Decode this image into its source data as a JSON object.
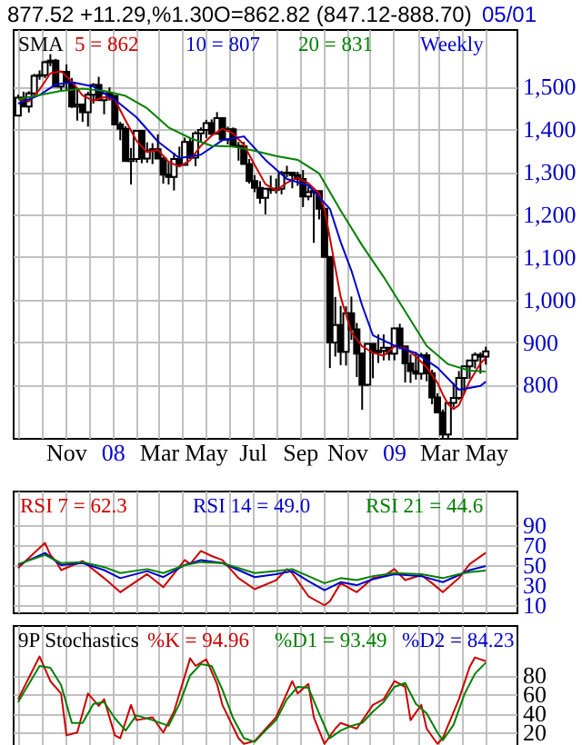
{
  "chart_data": [
    {
      "type": "candlestick",
      "title": "877.52 +11.29,%1.30O=862.82 (847.12-888.70)",
      "annotations": [
        "05/01",
        "SMA",
        "Weekly"
      ],
      "color": "#000000",
      "grid": true,
      "xlim": [
        "2007-08-24",
        "2009-06-10"
      ],
      "xticks": [
        {
          "value": "2007-09-01",
          "label": null
        },
        {
          "value": "2007-10-01",
          "label": null
        },
        {
          "value": "2007-11-01",
          "label": "Nov"
        },
        {
          "value": "2007-12-01",
          "label": null
        },
        {
          "value": "2008-01-01",
          "label": "08"
        },
        {
          "value": "2008-02-01",
          "label": null
        },
        {
          "value": "2008-03-01",
          "label": "Mar"
        },
        {
          "value": "2008-04-01",
          "label": null
        },
        {
          "value": "2008-05-01",
          "label": "May"
        },
        {
          "value": "2008-06-01",
          "label": null
        },
        {
          "value": "2008-07-01",
          "label": "Jul"
        },
        {
          "value": "2008-08-01",
          "label": null
        },
        {
          "value": "2008-09-01",
          "label": "Sep"
        },
        {
          "value": "2008-10-01",
          "label": null
        },
        {
          "value": "2008-11-01",
          "label": "Nov"
        },
        {
          "value": "2008-12-01",
          "label": null
        },
        {
          "value": "2009-01-01",
          "label": "09"
        },
        {
          "value": "2009-02-01",
          "label": null
        },
        {
          "value": "2009-03-01",
          "label": "Mar"
        },
        {
          "value": "2009-04-01",
          "label": null
        },
        {
          "value": "2009-05-01",
          "label": "May"
        }
      ],
      "ylim": [
        675,
        1635
      ],
      "yticks": [
        800,
        900,
        {
          "value": 1000,
          "label": "1,000"
        },
        {
          "value": 1100,
          "label": "1,100"
        },
        {
          "value": 1200,
          "label": "1,200"
        },
        {
          "value": 1300,
          "label": "1,300"
        },
        {
          "value": 1400,
          "label": "1,400"
        },
        {
          "value": 1500,
          "label": "1,500"
        }
      ],
      "x": [
        "2007-08-31",
        "2007-09-07",
        "2007-09-14",
        "2007-09-21",
        "2007-09-28",
        "2007-10-05",
        "2007-10-12",
        "2007-10-19",
        "2007-10-26",
        "2007-11-02",
        "2007-11-09",
        "2007-11-16",
        "2007-11-23",
        "2007-11-30",
        "2007-12-07",
        "2007-12-14",
        "2007-12-21",
        "2007-12-28",
        "2008-01-04",
        "2008-01-11",
        "2008-01-18",
        "2008-01-25",
        "2008-02-01",
        "2008-02-08",
        "2008-02-15",
        "2008-02-22",
        "2008-02-29",
        "2008-03-07",
        "2008-03-14",
        "2008-03-21",
        "2008-03-28",
        "2008-04-04",
        "2008-04-11",
        "2008-04-18",
        "2008-04-25",
        "2008-05-02",
        "2008-05-09",
        "2008-05-16",
        "2008-05-23",
        "2008-05-30",
        "2008-06-06",
        "2008-06-13",
        "2008-06-20",
        "2008-06-27",
        "2008-07-04",
        "2008-07-11",
        "2008-07-18",
        "2008-07-25",
        "2008-08-01",
        "2008-08-08",
        "2008-08-15",
        "2008-08-22",
        "2008-08-29",
        "2008-09-05",
        "2008-09-12",
        "2008-09-19",
        "2008-09-26",
        "2008-10-03",
        "2008-10-10",
        "2008-10-17",
        "2008-10-24",
        "2008-10-31",
        "2008-11-07",
        "2008-11-14",
        "2008-11-21",
        "2008-11-28",
        "2008-12-05",
        "2008-12-12",
        "2008-12-19",
        "2008-12-26",
        "2009-01-02",
        "2009-01-09",
        "2009-01-16",
        "2009-01-23",
        "2009-01-30",
        "2009-02-06",
        "2009-02-13",
        "2009-02-20",
        "2009-02-27",
        "2009-03-06",
        "2009-03-13",
        "2009-03-20",
        "2009-03-27",
        "2009-04-03",
        "2009-04-10",
        "2009-04-17",
        "2009-04-24",
        "2009-05-01"
      ],
      "ohlc": [
        [
          1432,
          1481,
          1432,
          1474
        ],
        [
          1474,
          1488,
          1452,
          1453
        ],
        [
          1453,
          1489,
          1439,
          1484
        ],
        [
          1484,
          1530,
          1476,
          1525
        ],
        [
          1525,
          1538,
          1516,
          1527
        ],
        [
          1527,
          1561,
          1520,
          1557
        ],
        [
          1557,
          1576,
          1548,
          1561
        ],
        [
          1561,
          1565,
          1500,
          1500
        ],
        [
          1500,
          1535,
          1490,
          1535
        ],
        [
          1535,
          1552,
          1492,
          1509
        ],
        [
          1509,
          1520,
          1450,
          1453
        ],
        [
          1453,
          1492,
          1420,
          1458
        ],
        [
          1458,
          1460,
          1417,
          1440
        ],
        [
          1440,
          1488,
          1406,
          1481
        ],
        [
          1481,
          1508,
          1460,
          1504
        ],
        [
          1504,
          1523,
          1467,
          1468
        ],
        [
          1468,
          1485,
          1435,
          1484
        ],
        [
          1484,
          1498,
          1467,
          1478
        ],
        [
          1478,
          1478,
          1411,
          1411
        ],
        [
          1411,
          1417,
          1374,
          1401
        ],
        [
          1401,
          1407,
          1325,
          1325
        ],
        [
          1325,
          1356,
          1270,
          1330
        ],
        [
          1330,
          1396,
          1322,
          1396
        ],
        [
          1396,
          1396,
          1320,
          1331
        ],
        [
          1331,
          1369,
          1321,
          1349
        ],
        [
          1349,
          1367,
          1318,
          1353
        ],
        [
          1353,
          1388,
          1331,
          1331
        ],
        [
          1331,
          1335,
          1272,
          1293
        ],
        [
          1293,
          1321,
          1270,
          1288
        ],
        [
          1288,
          1345,
          1256,
          1330
        ],
        [
          1330,
          1359,
          1312,
          1316
        ],
        [
          1316,
          1380,
          1316,
          1370
        ],
        [
          1370,
          1380,
          1330,
          1333
        ],
        [
          1333,
          1395,
          1313,
          1390
        ],
        [
          1390,
          1404,
          1370,
          1398
        ],
        [
          1398,
          1422,
          1379,
          1414
        ],
        [
          1414,
          1423,
          1383,
          1389
        ],
        [
          1389,
          1440,
          1388,
          1426
        ],
        [
          1426,
          1426,
          1373,
          1376
        ],
        [
          1376,
          1406,
          1364,
          1400
        ],
        [
          1400,
          1404,
          1359,
          1361
        ],
        [
          1361,
          1370,
          1326,
          1360
        ],
        [
          1360,
          1370,
          1318,
          1318
        ],
        [
          1318,
          1330,
          1272,
          1278
        ],
        [
          1278,
          1292,
          1252,
          1262
        ],
        [
          1262,
          1278,
          1225,
          1239
        ],
        [
          1239,
          1262,
          1200,
          1260
        ],
        [
          1260,
          1291,
          1248,
          1257
        ],
        [
          1257,
          1284,
          1249,
          1260
        ],
        [
          1260,
          1302,
          1247,
          1297
        ],
        [
          1297,
          1314,
          1287,
          1298
        ],
        [
          1298,
          1300,
          1261,
          1292
        ],
        [
          1292,
          1300,
          1267,
          1283
        ],
        [
          1283,
          1304,
          1217,
          1242
        ],
        [
          1242,
          1265,
          1233,
          1252
        ],
        [
          1252,
          1256,
          1133,
          1255
        ],
        [
          1255,
          1255,
          1188,
          1213
        ],
        [
          1213,
          1213,
          1099,
          1100
        ],
        [
          1100,
          1100,
          839,
          899
        ],
        [
          899,
          1006,
          866,
          940
        ],
        [
          940,
          985,
          846,
          877
        ],
        [
          877,
          984,
          845,
          968
        ],
        [
          968,
          1007,
          905,
          930
        ],
        [
          930,
          945,
          818,
          873
        ],
        [
          873,
          876,
          741,
          800
        ],
        [
          800,
          896,
          797,
          896
        ],
        [
          896,
          897,
          815,
          876
        ],
        [
          876,
          918,
          851,
          880
        ],
        [
          880,
          918,
          857,
          887
        ],
        [
          887,
          887,
          857,
          873
        ],
        [
          873,
          934,
          857,
          932
        ],
        [
          932,
          943,
          883,
          890
        ],
        [
          890,
          890,
          805,
          850
        ],
        [
          850,
          871,
          804,
          832
        ],
        [
          832,
          877,
          812,
          826
        ],
        [
          826,
          875,
          812,
          869
        ],
        [
          869,
          876,
          808,
          827
        ],
        [
          827,
          835,
          754,
          770
        ],
        [
          770,
          780,
          734,
          735
        ],
        [
          735,
          742,
          675,
          683
        ],
        [
          683,
          758,
          672,
          757
        ],
        [
          757,
          804,
          747,
          769
        ],
        [
          769,
          832,
          764,
          816
        ],
        [
          816,
          845,
          779,
          843
        ],
        [
          843,
          858,
          814,
          857
        ],
        [
          857,
          876,
          838,
          870
        ],
        [
          870,
          876,
          826,
          866
        ],
        [
          866,
          889,
          847,
          878
        ]
      ],
      "series": [
        {
          "type": "line",
          "name": "5 = 862",
          "color": "#cc0000",
          "x": [
            "2007-08-31",
            "2007-09-14",
            "2007-09-28",
            "2007-10-12",
            "2007-10-26",
            "2007-11-09",
            "2007-11-23",
            "2007-12-07",
            "2007-12-21",
            "2008-01-04",
            "2008-01-18",
            "2008-02-01",
            "2008-02-15",
            "2008-02-29",
            "2008-03-14",
            "2008-03-28",
            "2008-04-11",
            "2008-04-25",
            "2008-05-09",
            "2008-05-23",
            "2008-06-06",
            "2008-06-20",
            "2008-07-04",
            "2008-07-18",
            "2008-08-01",
            "2008-08-15",
            "2008-08-29",
            "2008-09-12",
            "2008-09-26",
            "2008-10-03",
            "2008-10-10",
            "2008-10-24",
            "2008-11-07",
            "2008-11-21",
            "2008-12-05",
            "2008-12-19",
            "2009-01-02",
            "2009-01-16",
            "2009-01-30",
            "2009-02-13",
            "2009-02-27",
            "2009-03-06",
            "2009-03-13",
            "2009-03-20",
            "2009-03-27",
            "2009-04-10",
            "2009-04-24",
            "2009-05-01"
          ],
          "values": [
            1470,
            1465,
            1493,
            1531,
            1536,
            1512,
            1479,
            1467,
            1475,
            1469,
            1420,
            1373,
            1346,
            1352,
            1323,
            1312,
            1327,
            1361,
            1385,
            1401,
            1390,
            1363,
            1316,
            1271,
            1256,
            1274,
            1286,
            1273,
            1249,
            1212,
            1144,
            1006,
            923,
            890,
            875,
            868,
            890,
            886,
            866,
            841,
            805,
            777,
            754,
            743,
            752,
            808,
            850,
            862
          ]
        },
        {
          "type": "line",
          "name": "10 = 807",
          "color": "#0000cc",
          "x": [
            "2007-08-31",
            "2007-09-28",
            "2007-10-19",
            "2007-11-09",
            "2007-12-07",
            "2008-01-04",
            "2008-02-01",
            "2008-02-29",
            "2008-03-28",
            "2008-04-25",
            "2008-05-23",
            "2008-06-20",
            "2008-07-18",
            "2008-08-15",
            "2008-09-12",
            "2008-10-10",
            "2008-10-24",
            "2008-11-07",
            "2008-11-21",
            "2008-12-05",
            "2009-01-02",
            "2009-01-30",
            "2009-02-27",
            "2009-03-27",
            "2009-04-24",
            "2009-05-01"
          ],
          "values": [
            1460,
            1480,
            1505,
            1510,
            1500,
            1469,
            1428,
            1371,
            1332,
            1340,
            1374,
            1383,
            1328,
            1283,
            1268,
            1213,
            1135,
            1068,
            986,
            916,
            892,
            874,
            840,
            788,
            797,
            807
          ]
        },
        {
          "type": "line",
          "name": "20 = 831",
          "color": "#008000",
          "x": [
            "2007-08-31",
            "2007-10-26",
            "2007-11-23",
            "2007-12-21",
            "2008-01-18",
            "2008-02-15",
            "2008-03-14",
            "2008-04-11",
            "2008-05-09",
            "2008-06-06",
            "2008-07-04",
            "2008-08-01",
            "2008-08-29",
            "2008-09-26",
            "2008-10-24",
            "2008-11-21",
            "2008-12-19",
            "2009-01-16",
            "2009-02-13",
            "2009-03-13",
            "2009-04-10",
            "2009-05-01"
          ],
          "values": [
            1470,
            1490,
            1495,
            1490,
            1478,
            1449,
            1404,
            1379,
            1361,
            1359,
            1349,
            1337,
            1328,
            1296,
            1209,
            1127,
            1053,
            972,
            891,
            848,
            833,
            831
          ]
        }
      ]
    },
    {
      "type": "line",
      "grid": true,
      "tick_labels": "y",
      "xlim": [
        "2007-08-24",
        "2009-06-10"
      ],
      "xticks": [
        {
          "value": "2007-09-01",
          "label": null
        },
        {
          "value": "2007-10-01",
          "label": null
        },
        {
          "value": "2007-11-01",
          "label": null
        },
        {
          "value": "2007-12-01",
          "label": null
        },
        {
          "value": "2008-01-01",
          "label": null
        },
        {
          "value": "2008-02-01",
          "label": null
        },
        {
          "value": "2008-03-01",
          "label": null
        },
        {
          "value": "2008-04-01",
          "label": null
        },
        {
          "value": "2008-05-01",
          "label": null
        },
        {
          "value": "2008-06-01",
          "label": null
        },
        {
          "value": "2008-07-01",
          "label": null
        },
        {
          "value": "2008-08-01",
          "label": null
        },
        {
          "value": "2008-09-01",
          "label": null
        },
        {
          "value": "2008-10-01",
          "label": null
        },
        {
          "value": "2008-11-01",
          "label": null
        },
        {
          "value": "2008-12-01",
          "label": null
        },
        {
          "value": "2009-01-01",
          "label": null
        },
        {
          "value": "2009-02-01",
          "label": null
        },
        {
          "value": "2009-03-01",
          "label": null
        },
        {
          "value": "2009-04-01",
          "label": null
        },
        {
          "value": "2009-05-01",
          "label": null
        }
      ],
      "ylim": [
        3,
        124
      ],
      "yticks": [
        10,
        30,
        50,
        70,
        90
      ],
      "series": [
        {
          "name": "RSI 7 = 62.3",
          "color": "#cc0000",
          "x": [
            "2007-08-31",
            "2007-10-05",
            "2007-10-12",
            "2007-10-19",
            "2007-10-26",
            "2007-11-23",
            "2007-12-21",
            "2008-01-11",
            "2008-02-15",
            "2008-03-07",
            "2008-04-04",
            "2008-04-11",
            "2008-04-25",
            "2008-05-09",
            "2008-05-23",
            "2008-06-13",
            "2008-07-04",
            "2008-08-01",
            "2008-08-15",
            "2008-08-22",
            "2008-09-12",
            "2008-10-03",
            "2008-10-10",
            "2008-10-24",
            "2008-11-14",
            "2008-12-05",
            "2008-12-19",
            "2009-01-02",
            "2009-01-16",
            "2009-02-06",
            "2009-02-20",
            "2009-03-06",
            "2009-03-27",
            "2009-04-10",
            "2009-05-01"
          ],
          "values": [
            47,
            72,
            60,
            54,
            45,
            54,
            37,
            23,
            41,
            28,
            55,
            51,
            64,
            59,
            55,
            37,
            26,
            35,
            46,
            42,
            19,
            10,
            14,
            32,
            23,
            37,
            39,
            46,
            35,
            40,
            32,
            23,
            37,
            51,
            62.3
          ]
        },
        {
          "name": "RSI 14 = 49.0",
          "color": "#0000cc",
          "x": [
            "2007-08-31",
            "2007-10-05",
            "2007-10-26",
            "2007-11-23",
            "2007-12-21",
            "2008-01-11",
            "2008-02-15",
            "2008-03-07",
            "2008-04-04",
            "2008-04-25",
            "2008-05-23",
            "2008-06-13",
            "2008-07-04",
            "2008-08-01",
            "2008-08-22",
            "2008-09-12",
            "2008-10-03",
            "2008-10-24",
            "2008-11-14",
            "2008-12-05",
            "2009-01-02",
            "2009-02-06",
            "2009-03-06",
            "2009-03-27",
            "2009-04-10",
            "2009-05-01"
          ],
          "values": [
            50,
            62,
            50,
            52,
            45,
            37,
            44,
            38,
            50,
            55,
            52,
            45,
            38,
            41,
            44,
            34,
            25,
            33,
            30,
            36,
            41,
            39,
            33,
            40,
            45,
            49.0
          ]
        },
        {
          "name": "RSI 21 = 44.6",
          "color": "#008000",
          "x": [
            "2007-08-31",
            "2007-10-05",
            "2007-10-26",
            "2007-11-23",
            "2007-12-21",
            "2008-01-11",
            "2008-02-15",
            "2008-03-07",
            "2008-04-04",
            "2008-04-25",
            "2008-05-23",
            "2008-06-13",
            "2008-07-04",
            "2008-08-01",
            "2008-08-22",
            "2008-09-12",
            "2008-10-03",
            "2008-10-24",
            "2008-11-14",
            "2008-12-05",
            "2009-01-02",
            "2009-02-06",
            "2009-03-06",
            "2009-03-27",
            "2009-04-10",
            "2009-05-01"
          ],
          "values": [
            51,
            60,
            52,
            53,
            48,
            42,
            46,
            42,
            50,
            53,
            52,
            47,
            42,
            44,
            46,
            39,
            32,
            37,
            35,
            39,
            42,
            41,
            37,
            41,
            43,
            44.6
          ]
        }
      ]
    },
    {
      "type": "line",
      "grid": true,
      "tick_labels": "y",
      "annotations": [
        "9P Stochastics",
        "%D2 = 84.23"
      ],
      "xlim": [
        "2007-08-24",
        "2009-06-10"
      ],
      "xticks": [
        {
          "value": "2007-09-01",
          "label": null
        },
        {
          "value": "2007-10-01",
          "label": null
        },
        {
          "value": "2007-11-01",
          "label": null
        },
        {
          "value": "2007-12-01",
          "label": null
        },
        {
          "value": "2008-01-01",
          "label": null
        },
        {
          "value": "2008-02-01",
          "label": null
        },
        {
          "value": "2008-03-01",
          "label": null
        },
        {
          "value": "2008-04-01",
          "label": null
        },
        {
          "value": "2008-05-01",
          "label": null
        },
        {
          "value": "2008-06-01",
          "label": null
        },
        {
          "value": "2008-07-01",
          "label": null
        },
        {
          "value": "2008-08-01",
          "label": null
        },
        {
          "value": "2008-09-01",
          "label": null
        },
        {
          "value": "2008-10-01",
          "label": null
        },
        {
          "value": "2008-11-01",
          "label": null
        },
        {
          "value": "2008-12-01",
          "label": null
        },
        {
          "value": "2009-01-01",
          "label": null
        },
        {
          "value": "2009-02-01",
          "label": null
        },
        {
          "value": "2009-03-01",
          "label": null
        },
        {
          "value": "2009-04-01",
          "label": null
        },
        {
          "value": "2009-05-01",
          "label": null
        }
      ],
      "ylim": [
        3,
        133
      ],
      "yticks": [
        20,
        40,
        60,
        80
      ],
      "series": [
        {
          "name": "%K = 94.96",
          "color": "#cc0000",
          "x": [
            "2007-08-31",
            "2007-09-28",
            "2007-10-12",
            "2007-10-26",
            "2007-11-02",
            "2007-11-16",
            "2007-11-30",
            "2007-12-14",
            "2007-12-21",
            "2008-01-04",
            "2008-01-11",
            "2008-01-25",
            "2008-02-01",
            "2008-02-22",
            "2008-03-07",
            "2008-03-21",
            "2008-04-11",
            "2008-04-18",
            "2008-05-02",
            "2008-05-16",
            "2008-05-23",
            "2008-06-13",
            "2008-06-20",
            "2008-07-04",
            "2008-08-01",
            "2008-08-22",
            "2008-08-29",
            "2008-09-12",
            "2008-09-19",
            "2008-10-03",
            "2008-10-17",
            "2008-10-24",
            "2008-11-14",
            "2008-12-05",
            "2008-12-19",
            "2009-01-02",
            "2009-01-16",
            "2009-01-23",
            "2009-02-06",
            "2009-02-13",
            "2009-02-27",
            "2009-03-06",
            "2009-03-27",
            "2009-04-10",
            "2009-04-17",
            "2009-05-01"
          ],
          "values": [
            55,
            100,
            74,
            61,
            17,
            20,
            61,
            48,
            55,
            17,
            14,
            49,
            33,
            36,
            20,
            42,
            98,
            90,
            97,
            71,
            49,
            14,
            8,
            11,
            36,
            74,
            61,
            71,
            36,
            8,
            24,
            30,
            24,
            49,
            55,
            74,
            68,
            33,
            49,
            24,
            8,
            14,
            55,
            89,
            99,
            94.96
          ]
        },
        {
          "name": "%D1 = 93.49",
          "color": "#008000",
          "x": [
            "2007-08-31",
            "2007-09-28",
            "2007-10-12",
            "2007-10-26",
            "2007-11-09",
            "2007-11-23",
            "2007-12-07",
            "2007-12-21",
            "2008-01-04",
            "2008-01-18",
            "2008-02-01",
            "2008-02-22",
            "2008-03-14",
            "2008-03-28",
            "2008-04-11",
            "2008-04-25",
            "2008-05-09",
            "2008-05-23",
            "2008-06-06",
            "2008-06-20",
            "2008-07-04",
            "2008-07-18",
            "2008-08-01",
            "2008-08-15",
            "2008-08-29",
            "2008-09-12",
            "2008-09-26",
            "2008-10-10",
            "2008-10-24",
            "2008-11-07",
            "2008-11-21",
            "2008-12-05",
            "2008-12-19",
            "2009-01-02",
            "2009-01-16",
            "2009-01-30",
            "2009-02-13",
            "2009-02-27",
            "2009-03-06",
            "2009-03-20",
            "2009-04-03",
            "2009-04-17",
            "2009-05-01"
          ],
          "values": [
            52,
            90,
            88,
            70,
            30,
            30,
            50,
            52,
            35,
            22,
            38,
            33,
            27,
            50,
            80,
            92,
            90,
            65,
            35,
            14,
            10,
            22,
            33,
            55,
            68,
            67,
            40,
            14,
            22,
            27,
            30,
            42,
            52,
            68,
            72,
            50,
            40,
            20,
            12,
            28,
            60,
            82,
            93.49
          ]
        }
      ]
    }
  ]
}
